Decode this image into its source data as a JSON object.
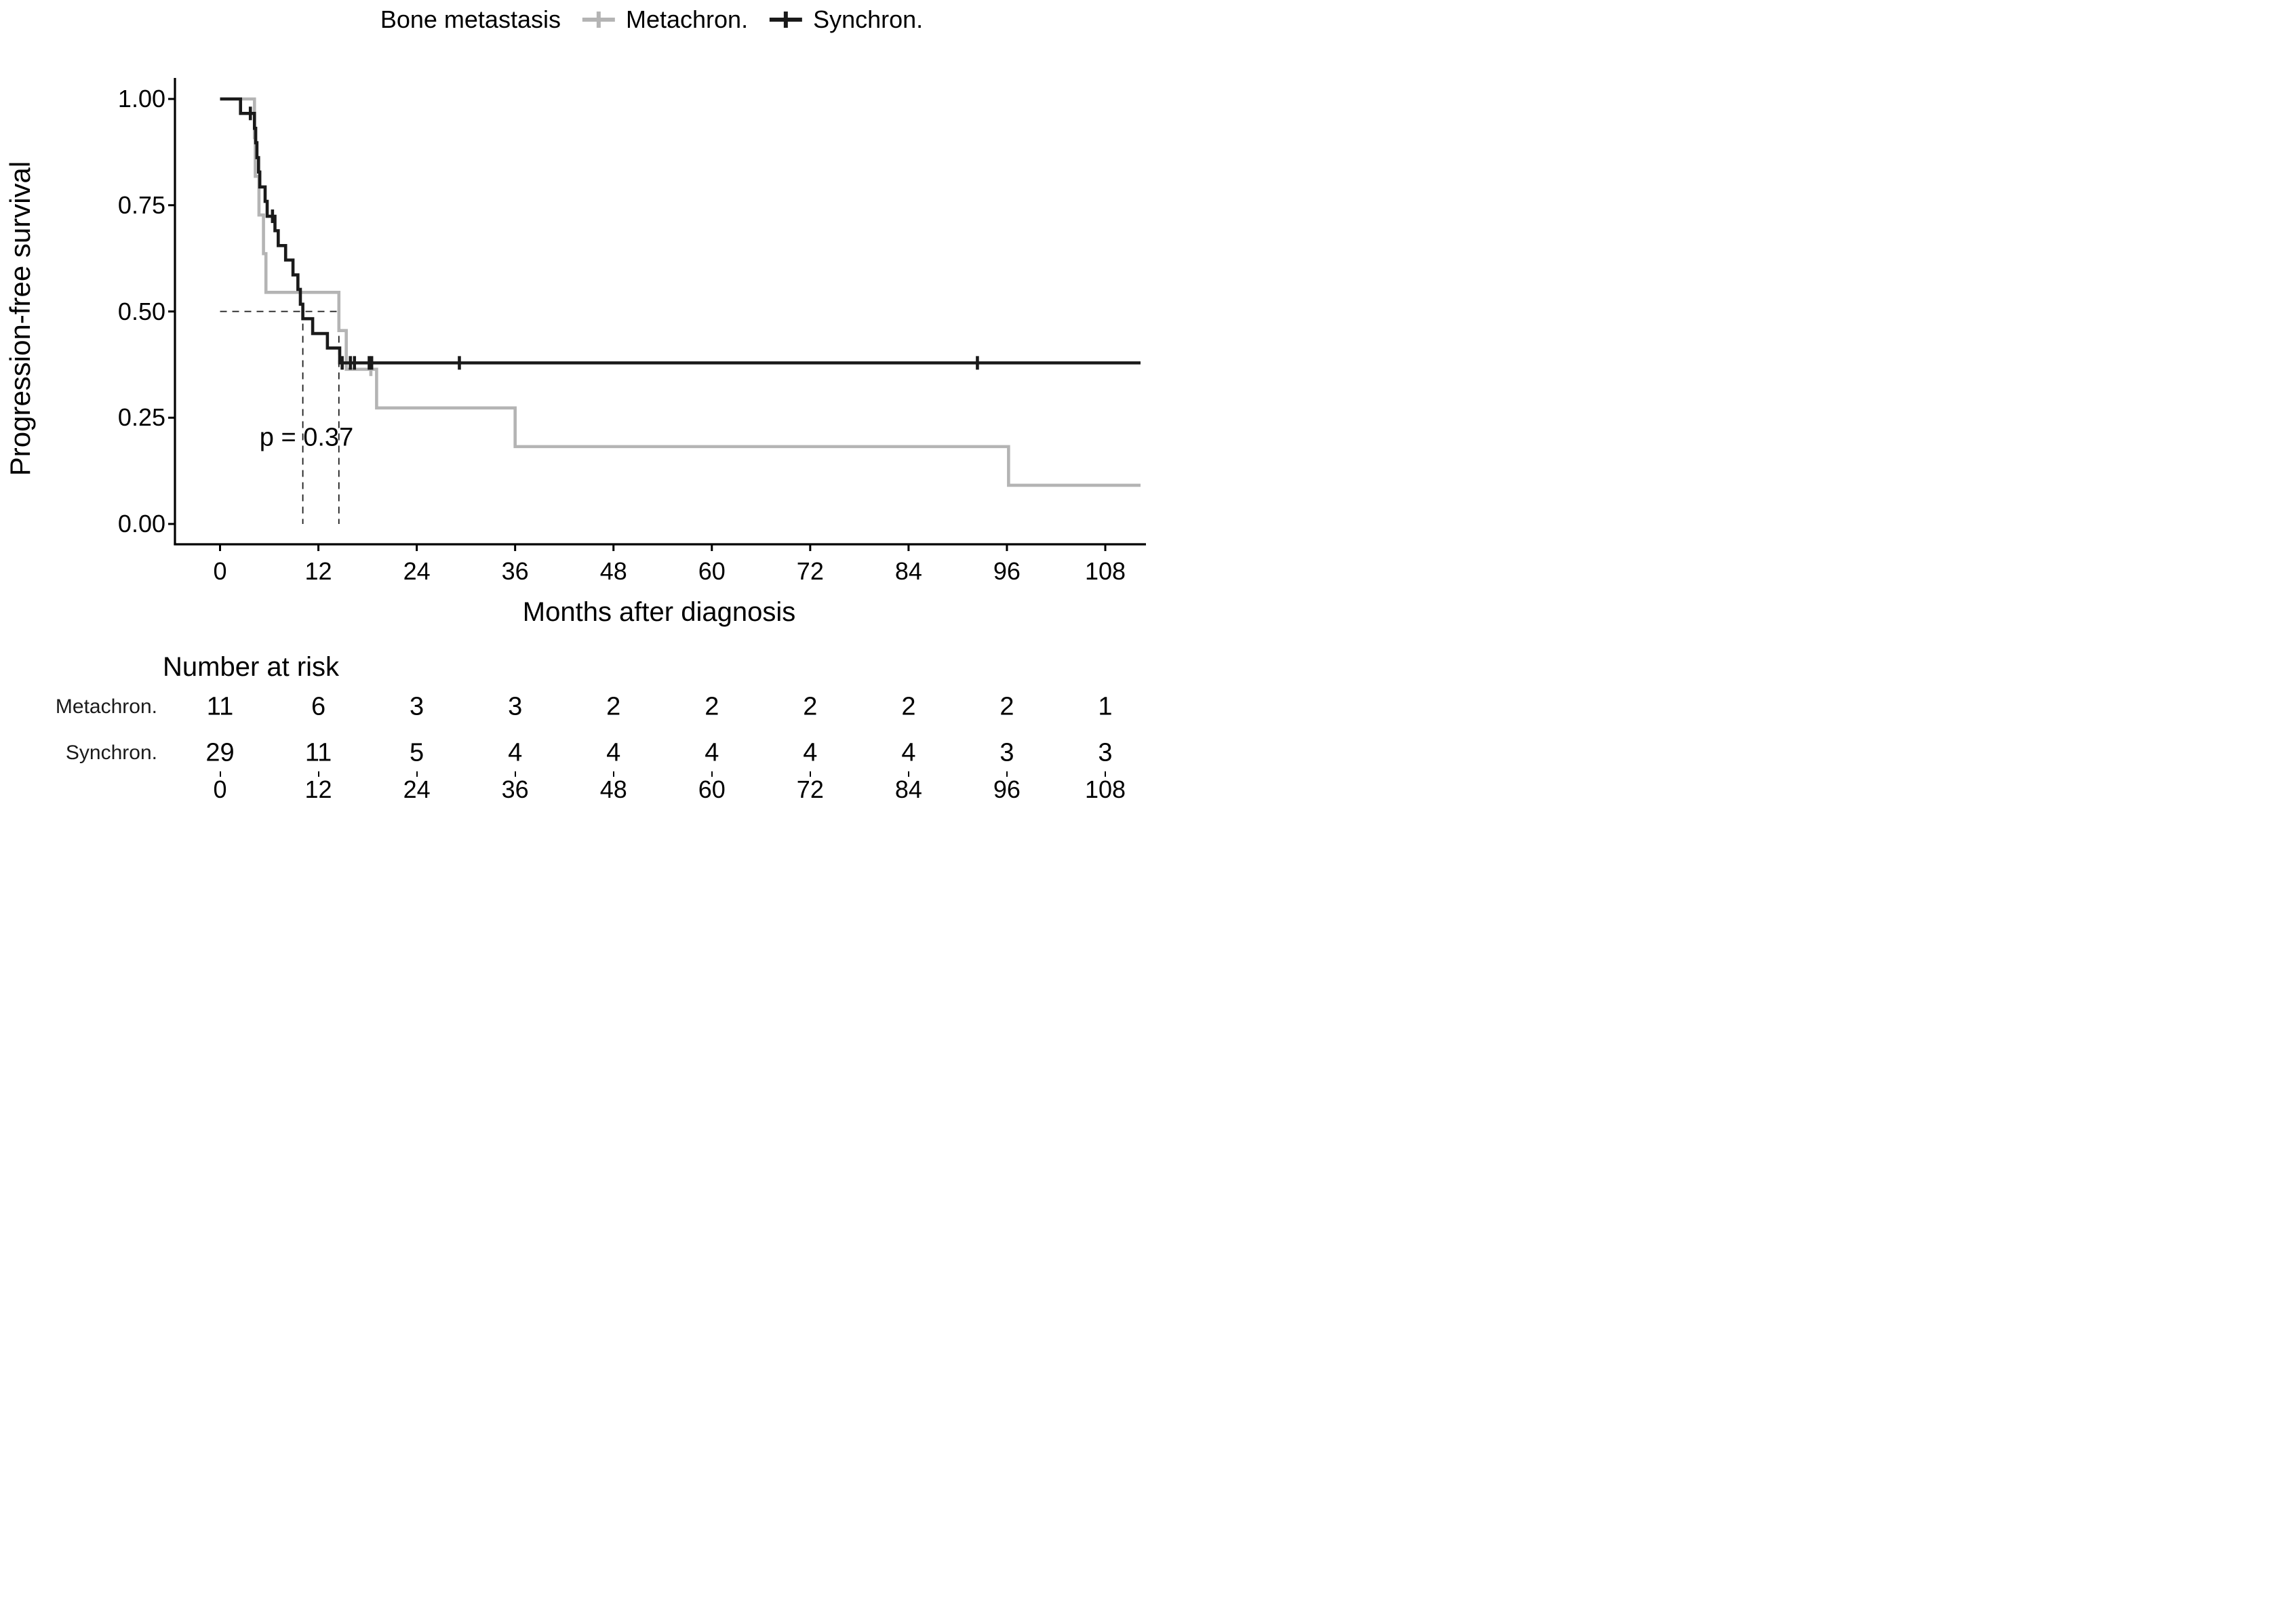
{
  "legend": {
    "title": "Bone metastasis",
    "items": [
      {
        "label": "Metachron.",
        "color": "#b4b4b4"
      },
      {
        "label": "Synchron.",
        "color": "#1a1a1a"
      }
    ]
  },
  "chart_data": {
    "type": "line",
    "subtype": "kaplan-meier-step",
    "xlabel": "Months after diagnosis",
    "ylabel": "Progression-free survival",
    "xlim": [
      -5.5,
      112.3
    ],
    "ylim": [
      0,
      1
    ],
    "xticks": [
      0,
      12,
      24,
      36,
      48,
      60,
      72,
      84,
      96,
      108
    ],
    "yticks": [
      0.0,
      0.25,
      0.5,
      0.75,
      1.0
    ],
    "grid": false,
    "legend_position": "top",
    "annotation": {
      "text": "p = 0.37",
      "x": 10.5,
      "y": 0.21
    },
    "medians": {
      "y": 0.5,
      "synchron_x": 10.1,
      "metachron_x": 14.5
    },
    "series": [
      {
        "name": "Metachron.",
        "color": "#b4b4b4",
        "steps": [
          [
            0,
            1.0
          ],
          [
            4.2,
            0.909
          ],
          [
            4.3,
            0.818
          ],
          [
            4.75,
            0.727
          ],
          [
            5.3,
            0.636
          ],
          [
            5.6,
            0.545
          ],
          [
            14.5,
            0.455
          ],
          [
            15.4,
            0.364
          ],
          [
            19.1,
            0.273
          ],
          [
            36.0,
            0.182
          ],
          [
            96.2,
            0.091
          ],
          [
            112.3,
            0.091
          ]
        ],
        "censors": [
          [
            18.4,
            0.364
          ]
        ]
      },
      {
        "name": "Synchron.",
        "color": "#1a1a1a",
        "steps": [
          [
            0,
            1.0
          ],
          [
            2.5,
            0.966
          ],
          [
            4.2,
            0.931
          ],
          [
            4.35,
            0.897
          ],
          [
            4.5,
            0.862
          ],
          [
            4.7,
            0.828
          ],
          [
            4.85,
            0.793
          ],
          [
            5.5,
            0.759
          ],
          [
            5.75,
            0.724
          ],
          [
            6.7,
            0.69
          ],
          [
            7.1,
            0.655
          ],
          [
            8.0,
            0.621
          ],
          [
            8.9,
            0.586
          ],
          [
            9.5,
            0.552
          ],
          [
            9.8,
            0.517
          ],
          [
            10.1,
            0.483
          ],
          [
            11.3,
            0.448
          ],
          [
            13.1,
            0.414
          ],
          [
            14.6,
            0.379
          ],
          [
            112.3,
            0.379
          ]
        ],
        "censors": [
          [
            3.7,
            0.966
          ],
          [
            6.4,
            0.724
          ],
          [
            14.9,
            0.379
          ],
          [
            15.9,
            0.379
          ],
          [
            16.4,
            0.379
          ],
          [
            18.2,
            0.379
          ],
          [
            18.5,
            0.379
          ],
          [
            29.2,
            0.379
          ],
          [
            92.4,
            0.379
          ]
        ]
      }
    ]
  },
  "risk_table": {
    "title": "Number at risk",
    "times": [
      0,
      12,
      24,
      36,
      48,
      60,
      72,
      84,
      96,
      108
    ],
    "rows": [
      {
        "label": "Metachron.",
        "values": [
          "11",
          "6",
          "3",
          "3",
          "2",
          "2",
          "2",
          "2",
          "2",
          "1"
        ]
      },
      {
        "label": "Synchron.",
        "values": [
          "29",
          "11",
          "5",
          "4",
          "4",
          "4",
          "4",
          "4",
          "3",
          "3"
        ]
      }
    ]
  },
  "colors": {
    "axis": "#000000",
    "dashed": "#1a1a1a",
    "background": "#ffffff"
  }
}
